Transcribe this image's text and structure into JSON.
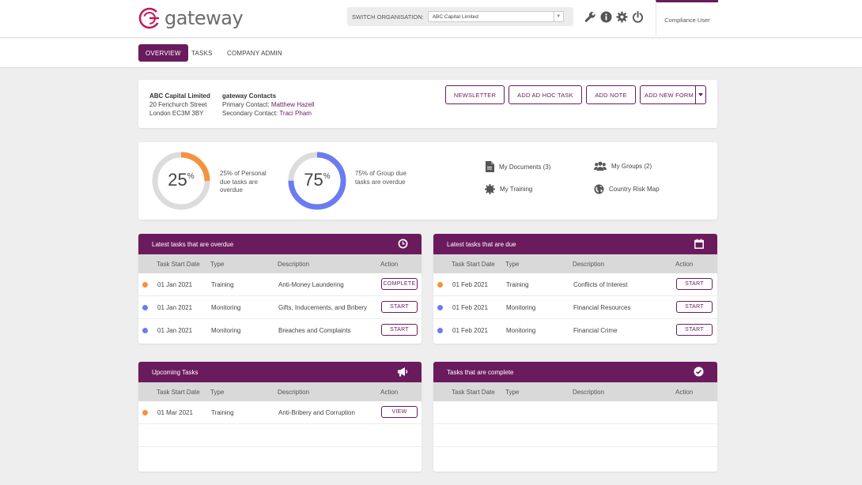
{
  "header": {
    "logo_text": "gateway",
    "switch_label": "SWITCH ORGANISATION:",
    "org_selected": "ABC Capital Limited",
    "user_name": "Compliance User",
    "icons": [
      "wrench-icon",
      "info-icon",
      "gear-icon",
      "power-icon"
    ]
  },
  "nav": {
    "tabs": [
      {
        "label": "OVERVIEW",
        "active": true
      },
      {
        "label": "TASKS",
        "active": false
      },
      {
        "label": "COMPANY ADMIN",
        "active": false
      }
    ]
  },
  "company": {
    "name": "ABC Capital Limited",
    "address_line1": "20 Fenchurch Street",
    "address_line2": "London EC3M 3BY",
    "contacts_title": "gateway Contacts",
    "primary_label": "Primary Contact:",
    "primary_name": "Matthew Hazell",
    "secondary_label": "Secondary Contact:",
    "secondary_name": "Traci Pham"
  },
  "actions": {
    "newsletter": "NEWSLETTER",
    "add_adhoc": "ADD AD HOC TASK",
    "add_note": "ADD NOTE",
    "add_form": "ADD NEW FORM"
  },
  "stats": {
    "personal": {
      "value": "25",
      "symbol": "%",
      "fraction": 0.25,
      "label": "25% of Personal due tasks are overdue",
      "color": "#f5923e"
    },
    "group": {
      "value": "75",
      "symbol": "%",
      "fraction": 0.75,
      "label": "75% of Group due tasks are overdue",
      "color": "#6b7cf0"
    }
  },
  "quick_links": {
    "documents": "My Documents (3)",
    "groups": "My Groups (2)",
    "training": "My Training",
    "risk_map": "Country Risk Map"
  },
  "columns": {
    "date": "Task Start Date",
    "type": "Type",
    "description": "Description",
    "action": "Action"
  },
  "panels": {
    "overdue": {
      "title": "Latest tasks that are overdue",
      "rows": [
        {
          "date": "01 Jan 2021",
          "type": "Training",
          "description": "Anti-Money Laundering",
          "action": "COMPLETE",
          "dot": "#f5923e"
        },
        {
          "date": "01 Jan 2021",
          "type": "Monitoring",
          "description": "Gifts, Inducements, and Bribery",
          "action": "START",
          "dot": "#6b7cf0"
        },
        {
          "date": "01 Jan 2021",
          "type": "Monitoring",
          "description": "Breaches and Complaints",
          "action": "START",
          "dot": "#6b7cf0"
        }
      ]
    },
    "due": {
      "title": "Latest tasks that are due",
      "rows": [
        {
          "date": "01 Feb 2021",
          "type": "Training",
          "description": "Conflicts of Interest",
          "action": "START",
          "dot": "#f5923e"
        },
        {
          "date": "01 Feb 2021",
          "type": "Monitoring",
          "description": "Financial Resources",
          "action": "START",
          "dot": "#6b7cf0"
        },
        {
          "date": "01 Feb 2021",
          "type": "Monitoring",
          "description": "Financial Crime",
          "action": "START",
          "dot": "#6b7cf0"
        }
      ]
    },
    "upcoming": {
      "title": "Upcoming Tasks",
      "rows": [
        {
          "date": "01 Mar 2021",
          "type": "Training",
          "description": "Anti-Bribery and Corruption",
          "action": "VIEW",
          "dot": "#f5923e"
        }
      ]
    },
    "complete": {
      "title": "Tasks that are complete",
      "rows": []
    }
  },
  "colors": {
    "brand": "#6a1b5e",
    "orange": "#f5923e",
    "blue": "#6b7cf0"
  }
}
